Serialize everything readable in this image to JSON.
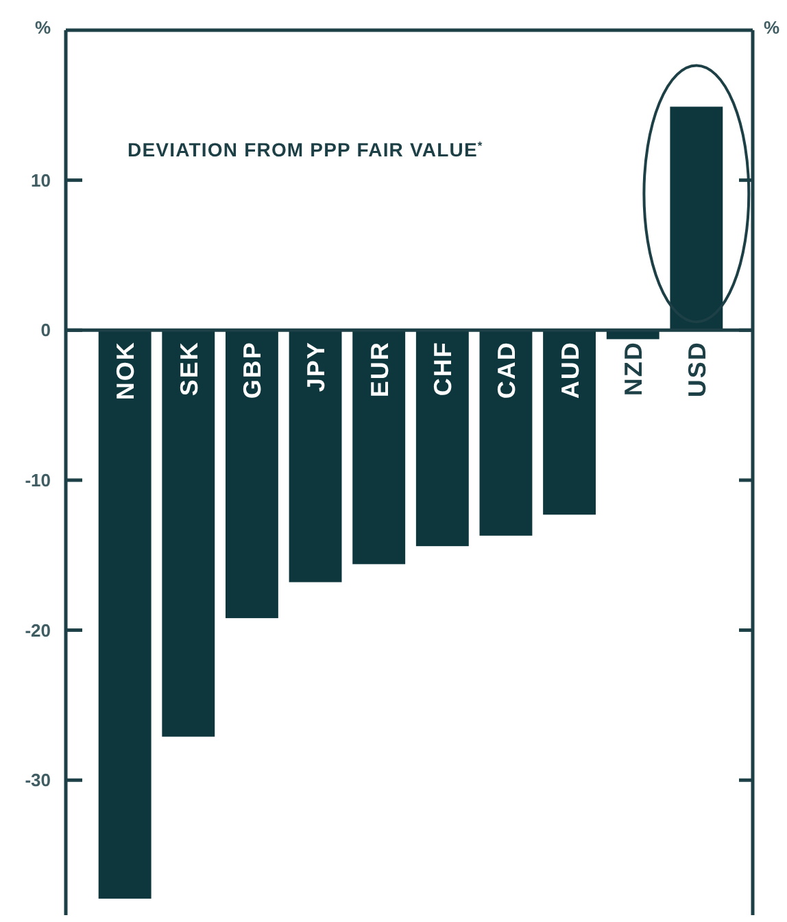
{
  "chart_data": {
    "type": "bar",
    "title": "DEVIATION FROM PPP FAIR VALUE$^{*}$",
    "ylabel": "%",
    "y2label": "%",
    "categories": [
      "NOK",
      "SEK",
      "GBP",
      "JPY",
      "EUR",
      "CHF",
      "CAD",
      "AUD",
      "NZD",
      "USD"
    ],
    "values": [
      -37.9,
      -27.1,
      -19.2,
      -16.8,
      -15.6,
      -14.4,
      -13.7,
      -12.3,
      -0.6,
      14.9
    ],
    "color": "#0e363d",
    "ylim": [
      -39,
      20
    ],
    "yticks": [
      10,
      0,
      -10,
      -20,
      -30
    ],
    "grid": false
  }
}
